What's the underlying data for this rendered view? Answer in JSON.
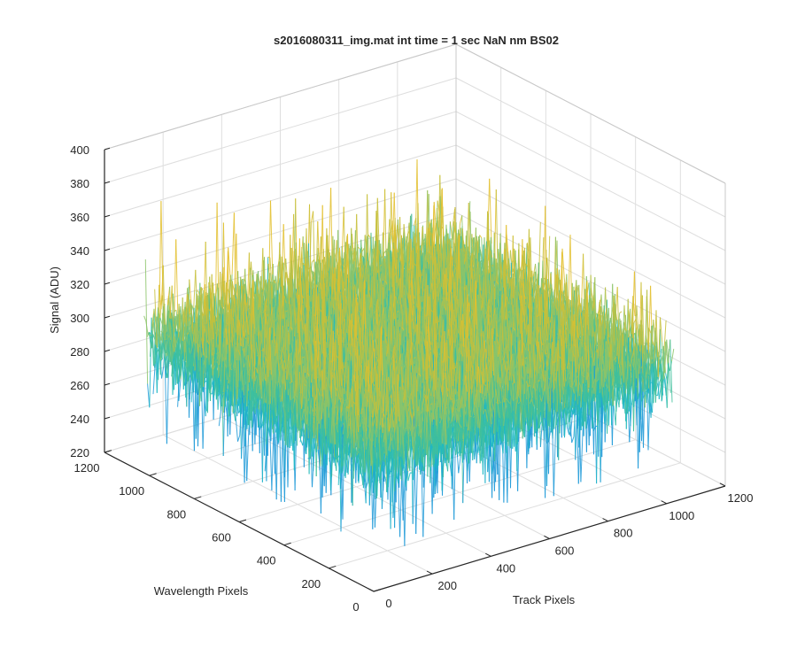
{
  "chart_data": {
    "type": "surface",
    "title": "s2016080311_img.mat int time = 1 sec  NaN nm BS02",
    "xlabel": "Track Pixels",
    "ylabel": "Wavelength Pixels",
    "zlabel": "Signal (ADU)",
    "xlim": [
      0,
      1200
    ],
    "ylim": [
      0,
      1200
    ],
    "zlim": [
      220,
      400
    ],
    "x_ticks": [
      "0",
      "200",
      "400",
      "600",
      "800",
      "1000",
      "1200"
    ],
    "y_ticks": [
      "0",
      "200",
      "400",
      "600",
      "800",
      "1000",
      "1200"
    ],
    "z_ticks": [
      "220",
      "240",
      "260",
      "280",
      "300",
      "320",
      "340",
      "360",
      "380",
      "400"
    ],
    "grid": true,
    "surface": {
      "x_extent": [
        0,
        1024
      ],
      "y_extent": [
        0,
        1024
      ],
      "mean_signal": 300,
      "noise_min": 240,
      "noise_max": 380,
      "colormap": [
        "#1f9ad8",
        "#1fb8c4",
        "#3fbf9c",
        "#8cc46a",
        "#c7c03a",
        "#e3c02e"
      ]
    }
  }
}
